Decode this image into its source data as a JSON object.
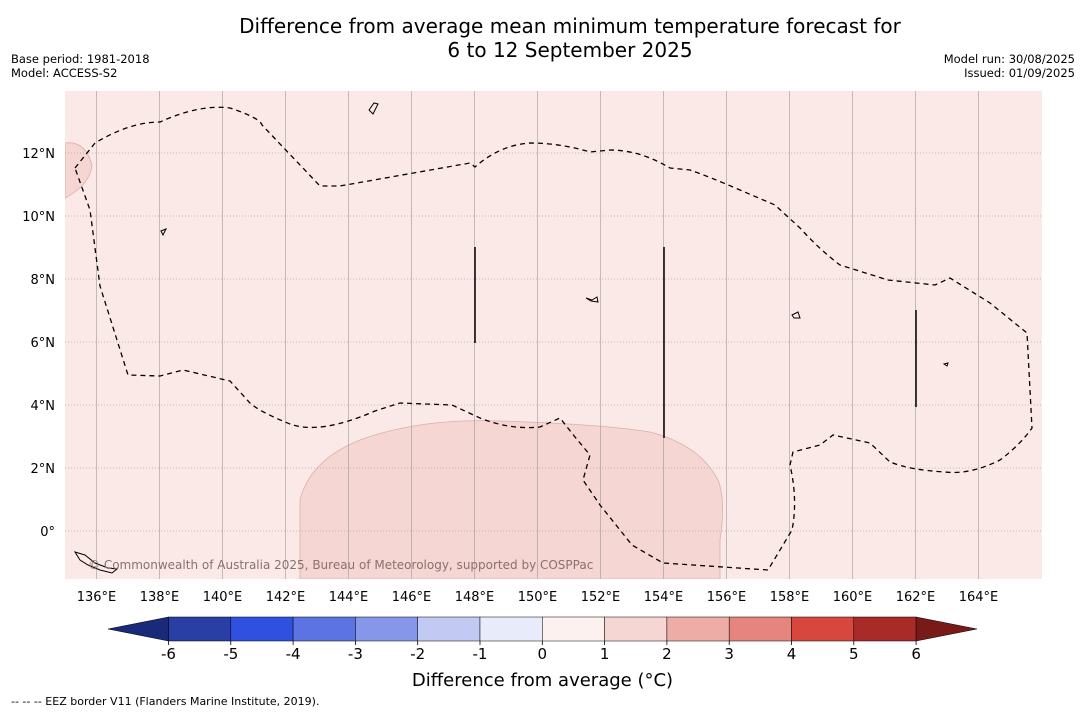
{
  "header": {
    "title_line1": "Difference from average mean minimum temperature forecast for",
    "title_line2": "6 to 12 September 2025",
    "base_period": "Base period: 1981-2018",
    "model": "Model: ACCESS-S2",
    "model_run": "Model run: 30/08/2025",
    "issued": "Issued: 01/09/2025"
  },
  "map": {
    "lon_labels": [
      "136°E",
      "138°E",
      "140°E",
      "142°E",
      "144°E",
      "146°E",
      "148°E",
      "150°E",
      "152°E",
      "154°E",
      "156°E",
      "158°E",
      "160°E",
      "162°E",
      "164°E"
    ],
    "lat_labels": [
      "12°N",
      "10°N",
      "8°N",
      "6°N",
      "4°N",
      "2°N",
      "0°"
    ],
    "background_fill": "#fbe9e8",
    "anomaly_fill": "#f5d6d3",
    "credit": "© Commonwealth of Australia 2025, Bureau of Meteorology, supported by COSPPac"
  },
  "colorbar": {
    "tick_labels": [
      "-6",
      "-5",
      "-4",
      "-3",
      "-2",
      "-1",
      "0",
      "1",
      "2",
      "3",
      "4",
      "5",
      "6"
    ],
    "colors": [
      "#2a3fa6",
      "#3050e0",
      "#5b73e3",
      "#8697ea",
      "#c2c9f3",
      "#e8ebfa",
      "#fdf1f0",
      "#f5d6d3",
      "#eeaca7",
      "#e6847e",
      "#d8473e",
      "#a92b27"
    ],
    "extend_low_color": "#1a2a7a",
    "extend_high_color": "#7a1a18",
    "label": "Difference from average (°C)"
  },
  "footnote": "--  --  -- EEZ border V11 (Flanders Marine Institute, 2019)."
}
